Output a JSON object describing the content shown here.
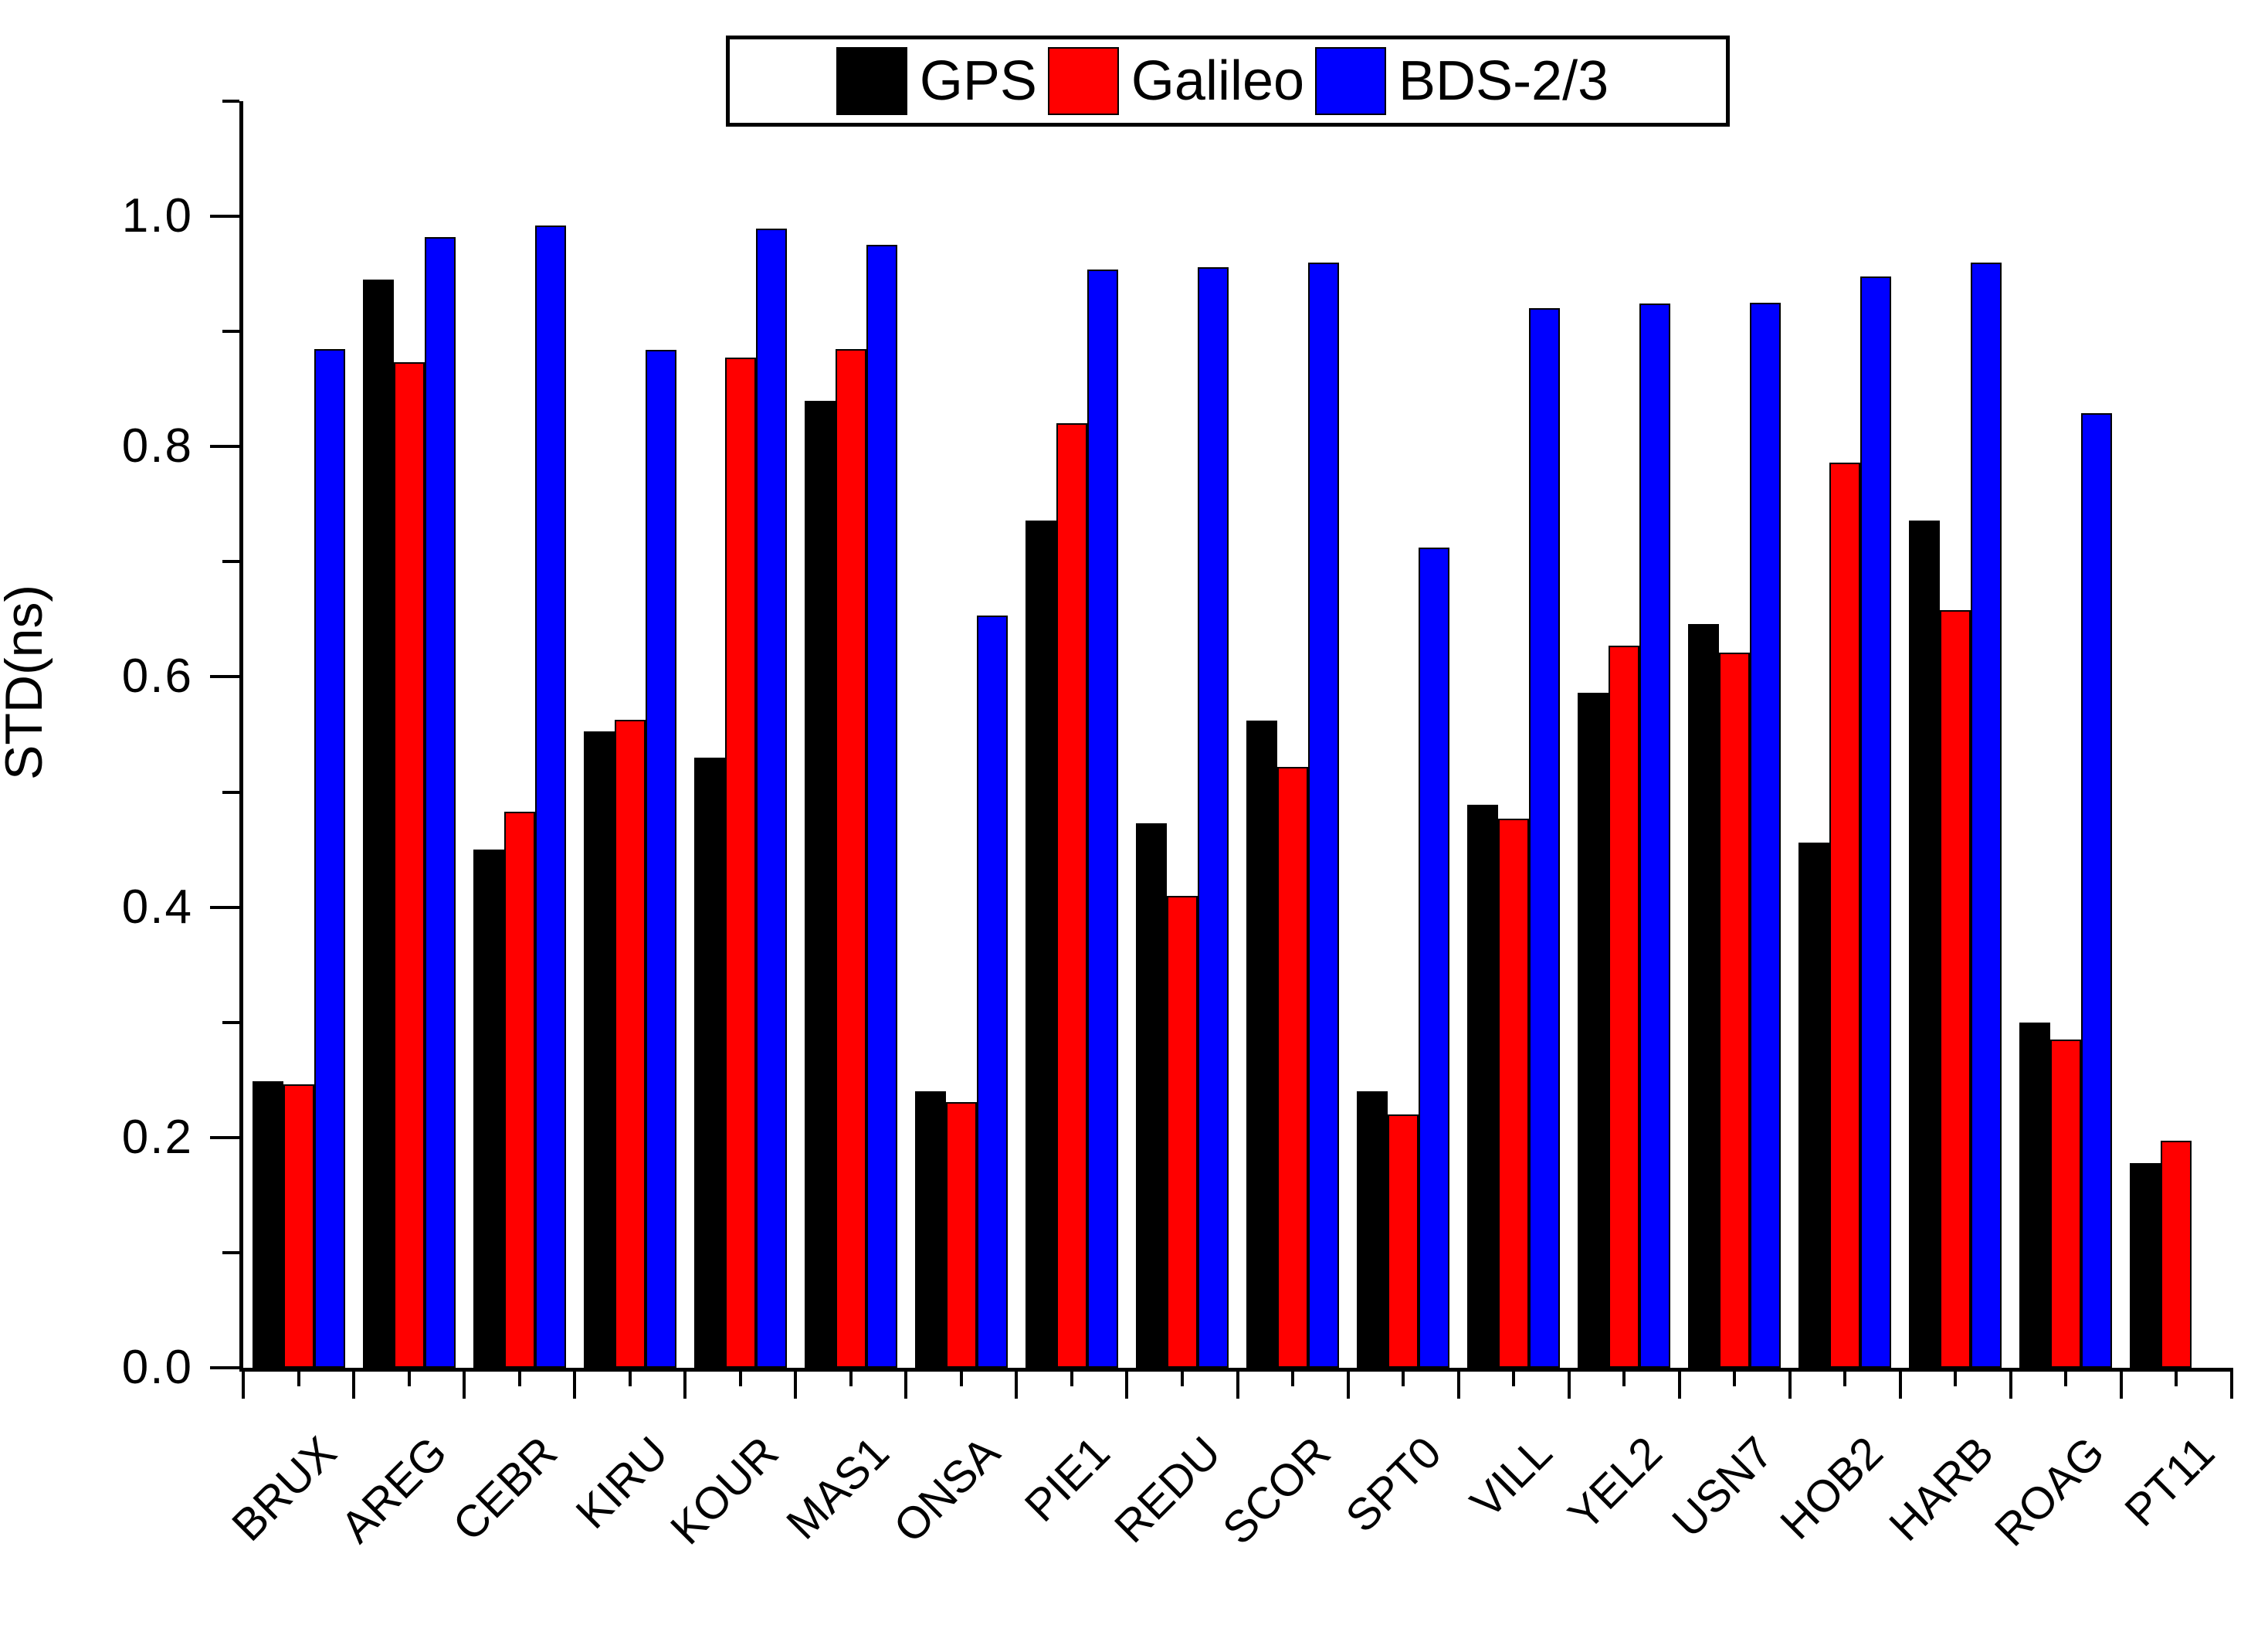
{
  "chart_data": {
    "type": "bar",
    "title": "",
    "xlabel": "",
    "ylabel": "STD(ns)",
    "ylim": [
      0,
      1.1
    ],
    "grid": false,
    "legend_position": "top-center",
    "bar_outline_color": "#000000",
    "categories": [
      "BRUX",
      "AREG",
      "CEBR",
      "KIRU",
      "KOUR",
      "MAS1",
      "ONSA",
      "PIE1",
      "REDU",
      "SCOR",
      "SPT0",
      "VILL",
      "YEL2",
      "USN7",
      "HOB2",
      "HARB",
      "ROAG",
      "PT11"
    ],
    "yticks_major": [
      0.0,
      0.2,
      0.4,
      0.6,
      0.8,
      1.0
    ],
    "ytick_labels": [
      "0.0",
      "0.2",
      "0.4",
      "0.6",
      "0.8",
      "1.0"
    ],
    "yticks_minor": [
      0.1,
      0.3,
      0.5,
      0.7,
      0.9,
      1.1
    ],
    "series": [
      {
        "name": "GPS",
        "color": "#000000",
        "values": [
          0.249,
          0.945,
          0.45,
          0.553,
          0.53,
          0.84,
          0.24,
          0.736,
          0.473,
          0.562,
          0.24,
          0.489,
          0.586,
          0.646,
          0.456,
          0.736,
          0.3,
          0.178
        ]
      },
      {
        "name": "Galileo",
        "color": "#ff0000",
        "values": [
          0.246,
          0.873,
          0.483,
          0.563,
          0.877,
          0.885,
          0.231,
          0.82,
          0.41,
          0.522,
          0.22,
          0.477,
          0.627,
          0.621,
          0.786,
          0.658,
          0.285,
          0.197
        ]
      },
      {
        "name": "BDS-2/3",
        "color": "#0000ff",
        "values": [
          0.885,
          0.982,
          0.992,
          0.884,
          0.989,
          0.975,
          0.653,
          0.954,
          0.956,
          0.96,
          0.712,
          0.92,
          0.924,
          0.925,
          0.948,
          0.96,
          0.829,
          null
        ]
      }
    ]
  },
  "legend": {
    "items": [
      {
        "label": "GPS",
        "color": "#000000"
      },
      {
        "label": "Galileo",
        "color": "#ff0000"
      },
      {
        "label": "BDS-2/3",
        "color": "#0000ff"
      }
    ]
  }
}
